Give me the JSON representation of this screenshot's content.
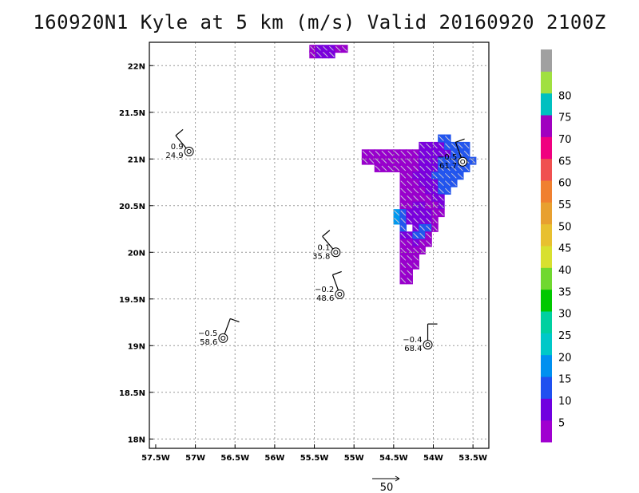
{
  "title": "160920N1 Kyle at 5 km (m/s) Valid 20160920 2100Z",
  "chart_data": {
    "type": "wind-map",
    "x_ticks": [
      "57.5W",
      "57W",
      "56.5W",
      "56W",
      "55.5W",
      "55W",
      "54.5W",
      "54W",
      "53.5W"
    ],
    "x_tick_values": [
      -57.5,
      -57,
      -56.5,
      -56,
      -55.5,
      -55,
      -54.5,
      -54,
      -53.5
    ],
    "y_ticks": [
      "18N",
      "18.5N",
      "19N",
      "19.5N",
      "20N",
      "20.5N",
      "21N",
      "21.5N",
      "22N"
    ],
    "y_tick_values": [
      18,
      18.5,
      19,
      19.5,
      20,
      20.5,
      21,
      21.5,
      22
    ],
    "xlim": [
      -57.58,
      -53.3
    ],
    "ylim": [
      17.9,
      22.25
    ],
    "grid": true,
    "colorbar": {
      "labels": [
        "5",
        "10",
        "15",
        "20",
        "25",
        "30",
        "35",
        "40",
        "45",
        "50",
        "55",
        "60",
        "65",
        "70",
        "75",
        "80"
      ],
      "colors": [
        "#a000d0",
        "#7000e0",
        "#2050f0",
        "#0090f0",
        "#00c8c8",
        "#00d0a0",
        "#00c800",
        "#70d830",
        "#d8e030",
        "#e8c030",
        "#e8a030",
        "#f08030",
        "#f05050",
        "#f00080",
        "#a000c0",
        "#00c0c0",
        "#a0e040",
        "#a0a0a0"
      ]
    },
    "stations": [
      {
        "lon": -57.08,
        "lat": 21.08,
        "top": "0.9",
        "bottom": "24.9",
        "barb_dir": 320
      },
      {
        "lon": -55.23,
        "lat": 20.0,
        "top": "0.1",
        "bottom": "35.8",
        "barb_dir": 320
      },
      {
        "lon": -55.18,
        "lat": 19.55,
        "top": "−0.2",
        "bottom": "48.6",
        "barb_dir": 340
      },
      {
        "lon": -56.65,
        "lat": 19.08,
        "top": "−0.5",
        "bottom": "58.6",
        "barb_dir": 20
      },
      {
        "lon": -54.07,
        "lat": 19.01,
        "top": "−0.4",
        "bottom": "68.4",
        "barb_dir": 0
      },
      {
        "lon": -53.63,
        "lat": 20.97,
        "top": "−0.5",
        "bottom": "61.7",
        "barb_dir": 340
      }
    ],
    "reference_vector": {
      "label": "50"
    },
    "wind_field": {
      "cells": [
        [
          -55.52,
          22.18,
          0
        ],
        [
          -55.44,
          22.18,
          1
        ],
        [
          -55.36,
          22.18,
          1
        ],
        [
          -55.28,
          22.18,
          1
        ],
        [
          -55.2,
          22.18,
          0
        ],
        [
          -55.12,
          22.18,
          0
        ],
        [
          -55.52,
          22.12,
          0
        ],
        [
          -55.44,
          22.12,
          1
        ],
        [
          -55.36,
          22.12,
          1
        ],
        [
          -55.28,
          22.12,
          1
        ],
        [
          -54.38,
          21.06,
          0
        ],
        [
          -54.3,
          21.06,
          0
        ],
        [
          -54.22,
          21.06,
          0
        ],
        [
          -54.14,
          21.06,
          1
        ],
        [
          -54.06,
          21.06,
          1
        ],
        [
          -53.98,
          21.06,
          1
        ],
        [
          -53.9,
          21.06,
          1
        ],
        [
          -53.82,
          21.06,
          1
        ],
        [
          -53.74,
          21.06,
          2
        ],
        [
          -53.66,
          21.06,
          2
        ],
        [
          -53.58,
          21.06,
          2
        ],
        [
          -54.38,
          20.98,
          0
        ],
        [
          -54.3,
          20.98,
          0
        ],
        [
          -54.22,
          20.98,
          0
        ],
        [
          -54.14,
          20.98,
          1
        ],
        [
          -54.06,
          20.98,
          1
        ],
        [
          -53.98,
          20.98,
          1
        ],
        [
          -53.9,
          20.98,
          2
        ],
        [
          -53.82,
          20.98,
          2
        ],
        [
          -53.74,
          20.98,
          2
        ],
        [
          -53.66,
          20.98,
          2
        ],
        [
          -53.58,
          20.98,
          2
        ],
        [
          -53.5,
          20.98,
          2
        ],
        [
          -54.38,
          20.9,
          0
        ],
        [
          -54.3,
          20.9,
          0
        ],
        [
          -54.22,
          20.9,
          0
        ],
        [
          -54.14,
          20.9,
          1
        ],
        [
          -54.06,
          20.9,
          1
        ],
        [
          -53.98,
          20.9,
          1
        ],
        [
          -53.9,
          20.9,
          2
        ],
        [
          -53.82,
          20.9,
          2
        ],
        [
          -53.74,
          20.9,
          2
        ],
        [
          -53.66,
          20.9,
          2
        ],
        [
          -53.58,
          20.9,
          2
        ],
        [
          -54.38,
          20.82,
          0
        ],
        [
          -54.3,
          20.82,
          0
        ],
        [
          -54.22,
          20.82,
          1
        ],
        [
          -54.14,
          20.82,
          1
        ],
        [
          -54.06,
          20.82,
          1
        ],
        [
          -53.98,
          20.82,
          2
        ],
        [
          -53.9,
          20.82,
          2
        ],
        [
          -53.82,
          20.82,
          2
        ],
        [
          -53.74,
          20.82,
          2
        ],
        [
          -53.66,
          20.82,
          2
        ],
        [
          -54.38,
          20.74,
          0
        ],
        [
          -54.3,
          20.74,
          0
        ],
        [
          -54.22,
          20.74,
          0
        ],
        [
          -54.14,
          20.74,
          1
        ],
        [
          -54.06,
          20.74,
          1
        ],
        [
          -53.98,
          20.74,
          1
        ],
        [
          -53.9,
          20.74,
          2
        ],
        [
          -53.82,
          20.74,
          2
        ],
        [
          -53.74,
          20.74,
          2
        ],
        [
          -54.38,
          20.66,
          0
        ],
        [
          -54.3,
          20.66,
          0
        ],
        [
          -54.22,
          20.66,
          0
        ],
        [
          -54.14,
          20.66,
          0
        ],
        [
          -54.06,
          20.66,
          1
        ],
        [
          -53.98,
          20.66,
          1
        ],
        [
          -53.9,
          20.66,
          2
        ],
        [
          -53.82,
          20.66,
          2
        ],
        [
          -54.38,
          20.58,
          0
        ],
        [
          -54.3,
          20.58,
          0
        ],
        [
          -54.22,
          20.58,
          0
        ],
        [
          -54.14,
          20.58,
          0
        ],
        [
          -54.06,
          20.58,
          0
        ],
        [
          -53.98,
          20.58,
          1
        ],
        [
          -53.9,
          20.58,
          1
        ],
        [
          -54.38,
          20.5,
          0
        ],
        [
          -54.3,
          20.5,
          0
        ],
        [
          -54.22,
          20.5,
          1
        ],
        [
          -54.14,
          20.5,
          1
        ],
        [
          -54.06,
          20.5,
          0
        ],
        [
          -53.98,
          20.5,
          0
        ],
        [
          -53.9,
          20.5,
          1
        ],
        [
          -54.46,
          20.42,
          3
        ],
        [
          -54.38,
          20.42,
          2
        ],
        [
          -54.3,
          20.42,
          1
        ],
        [
          -54.22,
          20.42,
          1
        ],
        [
          -54.14,
          20.42,
          1
        ],
        [
          -54.06,
          20.42,
          1
        ],
        [
          -53.98,
          20.42,
          0
        ],
        [
          -53.9,
          20.42,
          0
        ],
        [
          -54.46,
          20.34,
          3
        ],
        [
          -54.38,
          20.34,
          2
        ],
        [
          -54.3,
          20.34,
          1
        ],
        [
          -54.22,
          20.34,
          1
        ],
        [
          -54.14,
          20.34,
          1
        ],
        [
          -54.06,
          20.34,
          1
        ],
        [
          -53.98,
          20.34,
          0
        ],
        [
          -54.38,
          20.26,
          2
        ],
        [
          -54.22,
          20.26,
          1
        ],
        [
          -54.14,
          20.26,
          2
        ],
        [
          -54.06,
          20.26,
          2
        ],
        [
          -53.98,
          20.26,
          0
        ],
        [
          -54.38,
          20.18,
          1
        ],
        [
          -54.3,
          20.18,
          1
        ],
        [
          -54.22,
          20.18,
          2
        ],
        [
          -54.14,
          20.18,
          2
        ],
        [
          -54.06,
          20.18,
          0
        ],
        [
          -54.38,
          20.1,
          0
        ],
        [
          -54.3,
          20.1,
          0
        ],
        [
          -54.22,
          20.1,
          1
        ],
        [
          -54.14,
          20.1,
          0
        ],
        [
          -54.06,
          20.1,
          0
        ],
        [
          -54.38,
          20.02,
          0
        ],
        [
          -54.3,
          20.02,
          0
        ],
        [
          -54.22,
          20.02,
          0
        ],
        [
          -54.14,
          20.02,
          0
        ],
        [
          -54.38,
          19.94,
          0
        ],
        [
          -54.3,
          19.94,
          0
        ],
        [
          -54.22,
          19.94,
          0
        ],
        [
          -54.38,
          19.86,
          0
        ],
        [
          -54.3,
          19.86,
          0
        ],
        [
          -54.22,
          19.86,
          0
        ],
        [
          -54.38,
          19.78,
          0
        ],
        [
          -54.3,
          19.78,
          0
        ],
        [
          -54.38,
          19.7,
          0
        ],
        [
          -54.3,
          19.7,
          0
        ],
        [
          -54.86,
          21.06,
          0
        ],
        [
          -54.78,
          21.06,
          0
        ],
        [
          -54.7,
          21.06,
          0
        ],
        [
          -54.62,
          21.06,
          0
        ],
        [
          -54.54,
          21.06,
          0
        ],
        [
          -54.46,
          21.06,
          0
        ],
        [
          -54.86,
          20.98,
          0
        ],
        [
          -54.78,
          20.98,
          0
        ],
        [
          -54.7,
          20.98,
          0
        ],
        [
          -54.62,
          20.98,
          0
        ],
        [
          -54.54,
          20.98,
          0
        ],
        [
          -54.46,
          20.98,
          0
        ],
        [
          -54.7,
          20.9,
          0
        ],
        [
          -54.62,
          20.9,
          0
        ],
        [
          -54.54,
          20.9,
          0
        ],
        [
          -54.46,
          20.9,
          0
        ],
        [
          -54.14,
          21.14,
          1
        ],
        [
          -54.06,
          21.14,
          1
        ],
        [
          -53.98,
          21.14,
          1
        ],
        [
          -53.9,
          21.14,
          1
        ],
        [
          -53.82,
          21.14,
          2
        ],
        [
          -53.74,
          21.14,
          2
        ],
        [
          -53.66,
          21.14,
          2
        ],
        [
          -53.58,
          21.14,
          2
        ],
        [
          -53.9,
          21.22,
          2
        ],
        [
          -53.82,
          21.22,
          2
        ]
      ],
      "cell_colors": [
        "#9900cc",
        "#7a00dd",
        "#2255ee",
        "#0099ee"
      ]
    }
  }
}
